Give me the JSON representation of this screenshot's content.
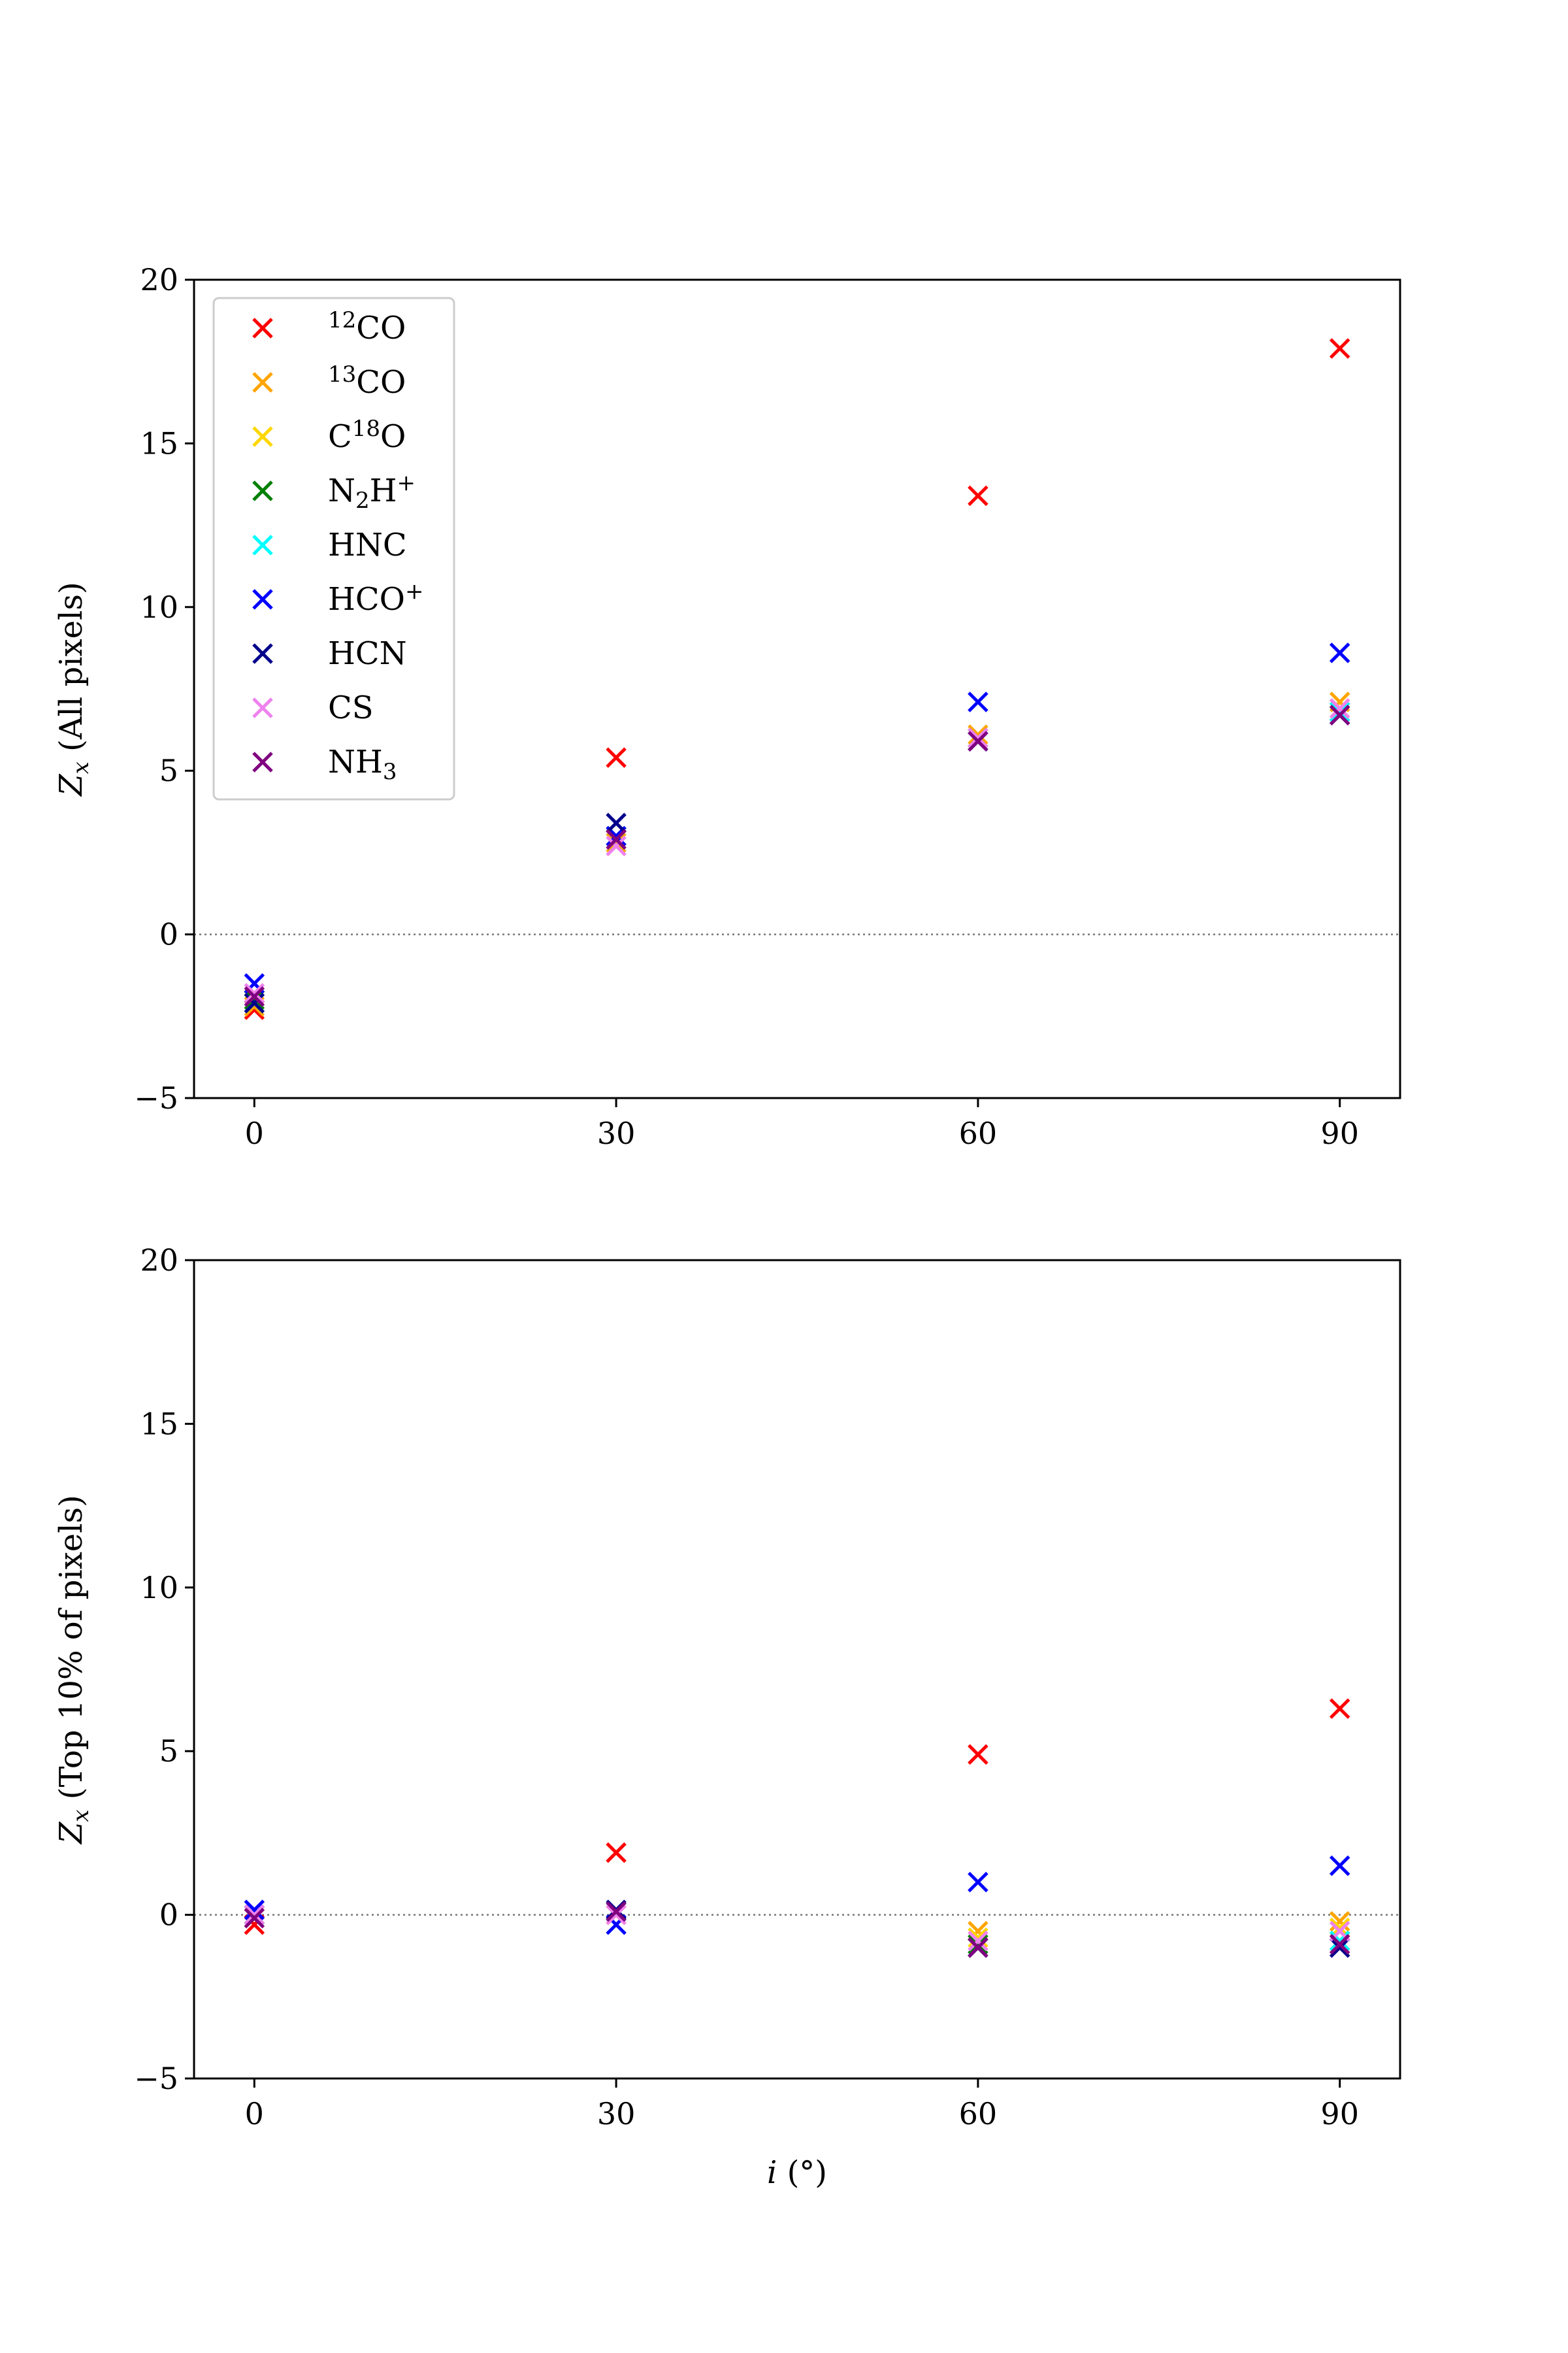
{
  "chart_data": [
    {
      "type": "scatter",
      "marker": "x",
      "xlabel": "",
      "ylabel": "Z_x (All pixels)",
      "ylabel_parts": {
        "symbol": "Z",
        "subscript": "x",
        "rest": " (All pixels)"
      },
      "xticks": [
        0,
        30,
        60,
        90
      ],
      "yticks": [
        -5,
        0,
        5,
        10,
        15,
        20
      ],
      "xlim": [
        -5,
        95
      ],
      "ylim": [
        -5,
        20
      ],
      "zero_line": true,
      "legend": "top-left",
      "series": [
        {
          "name": "12CO",
          "label_parts": [
            {
              "t": "12",
              "s": "sup"
            },
            {
              "t": "CO"
            }
          ],
          "color": "#ff0000",
          "x": [
            0,
            30,
            60,
            90
          ],
          "y": [
            -2.3,
            5.4,
            13.4,
            17.9
          ]
        },
        {
          "name": "13CO",
          "label_parts": [
            {
              "t": "13",
              "s": "sup"
            },
            {
              "t": "CO"
            }
          ],
          "color": "#ffa500",
          "x": [
            0,
            30,
            60,
            90
          ],
          "y": [
            -2.2,
            2.8,
            6.1,
            7.1
          ]
        },
        {
          "name": "C18O",
          "label_parts": [
            {
              "t": "C"
            },
            {
              "t": "18",
              "s": "sup"
            },
            {
              "t": "O"
            }
          ],
          "color": "#ffd700",
          "x": [
            0,
            30,
            60,
            90
          ],
          "y": [
            -2.0,
            2.9,
            6.0,
            6.9
          ]
        },
        {
          "name": "N2H+",
          "label_parts": [
            {
              "t": "N"
            },
            {
              "t": "2",
              "s": "sub"
            },
            {
              "t": "H"
            },
            {
              "t": "+",
              "s": "sup"
            }
          ],
          "color": "#008000",
          "x": [
            0,
            30,
            60,
            90
          ],
          "y": [
            -2.0,
            3.0,
            6.0,
            6.8
          ]
        },
        {
          "name": "HNC",
          "label_parts": [
            {
              "t": "HNC"
            }
          ],
          "color": "#00ffff",
          "x": [
            0,
            30,
            60,
            90
          ],
          "y": [
            -2.1,
            2.9,
            5.9,
            6.8
          ]
        },
        {
          "name": "HCO+",
          "label_parts": [
            {
              "t": "HCO"
            },
            {
              "t": "+",
              "s": "sup"
            }
          ],
          "color": "#0000ff",
          "x": [
            0,
            30,
            60,
            90
          ],
          "y": [
            -1.5,
            3.0,
            7.1,
            8.6
          ]
        },
        {
          "name": "HCN",
          "label_parts": [
            {
              "t": "HCN"
            }
          ],
          "color": "#00008b",
          "x": [
            0,
            30,
            60,
            90
          ],
          "y": [
            -2.1,
            3.4,
            5.9,
            6.7
          ]
        },
        {
          "name": "CS",
          "label_parts": [
            {
              "t": "CS"
            }
          ],
          "color": "#ee82ee",
          "x": [
            0,
            30,
            60,
            90
          ],
          "y": [
            -1.8,
            2.7,
            6.0,
            6.9
          ]
        },
        {
          "name": "NH3",
          "label_parts": [
            {
              "t": "NH"
            },
            {
              "t": "3",
              "s": "sub"
            }
          ],
          "color": "#800080",
          "x": [
            0,
            30,
            60,
            90
          ],
          "y": [
            -1.9,
            2.9,
            5.9,
            6.7
          ]
        }
      ]
    },
    {
      "type": "scatter",
      "marker": "x",
      "xlabel": "i (°)",
      "xlabel_parts": {
        "symbol": "i",
        "rest": " (°)"
      },
      "ylabel": "Z_x (Top 10% of pixels)",
      "ylabel_parts": {
        "symbol": "Z",
        "subscript": "x",
        "rest": " (Top 10% of pixels)"
      },
      "xticks": [
        0,
        30,
        60,
        90
      ],
      "yticks": [
        -5,
        0,
        5,
        10,
        15,
        20
      ],
      "xlim": [
        -5,
        95
      ],
      "ylim": [
        -5,
        20
      ],
      "zero_line": true,
      "series": [
        {
          "name": "12CO",
          "color": "#ff0000",
          "x": [
            0,
            30,
            60,
            90
          ],
          "y": [
            -0.3,
            1.9,
            4.9,
            6.3
          ]
        },
        {
          "name": "13CO",
          "color": "#ffa500",
          "x": [
            0,
            30,
            60,
            90
          ],
          "y": [
            -0.1,
            0.0,
            -0.5,
            -0.2
          ]
        },
        {
          "name": "C18O",
          "color": "#ffd700",
          "x": [
            0,
            30,
            60,
            90
          ],
          "y": [
            0.0,
            0.1,
            -0.7,
            -0.4
          ]
        },
        {
          "name": "N2H+",
          "color": "#008000",
          "x": [
            0,
            30,
            60,
            90
          ],
          "y": [
            0.0,
            0.1,
            -0.9,
            -0.8
          ]
        },
        {
          "name": "HNC",
          "color": "#00ffff",
          "x": [
            0,
            30,
            60,
            90
          ],
          "y": [
            0.0,
            0.1,
            -1.0,
            -0.8
          ]
        },
        {
          "name": "HCO+",
          "color": "#0000ff",
          "x": [
            0,
            30,
            60,
            90
          ],
          "y": [
            0.15,
            -0.3,
            1.0,
            1.5
          ]
        },
        {
          "name": "HCN",
          "color": "#00008b",
          "x": [
            0,
            30,
            60,
            90
          ],
          "y": [
            0.0,
            0.15,
            -1.0,
            -1.0
          ]
        },
        {
          "name": "CS",
          "color": "#ee82ee",
          "x": [
            0,
            30,
            60,
            90
          ],
          "y": [
            0.0,
            0.0,
            -0.8,
            -0.5
          ]
        },
        {
          "name": "NH3",
          "color": "#800080",
          "x": [
            0,
            30,
            60,
            90
          ],
          "y": [
            -0.1,
            0.1,
            -1.0,
            -0.9
          ]
        }
      ]
    }
  ]
}
